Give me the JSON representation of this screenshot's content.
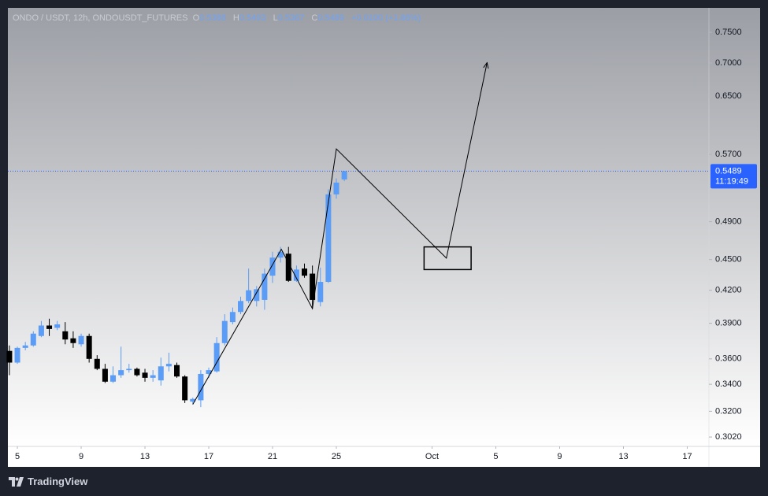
{
  "chart_data": {
    "type": "candlestick",
    "legend": {
      "symbol": "ONDO / USDT, 12h, ONDOUSDT_FUTURES",
      "open_key": "O",
      "high_key": "H",
      "low_key": "L",
      "close_key": "C",
      "change": "+0.0100 (+1.86%)"
    },
    "log_scale": true,
    "up_color": "#5b9cf6",
    "down_color": "#000000",
    "x": [
      0,
      1,
      2,
      3,
      4,
      5,
      6,
      7,
      8,
      9,
      10,
      11,
      12,
      13,
      14,
      15,
      16,
      17,
      18,
      19,
      20,
      21,
      22,
      23,
      24,
      25,
      26,
      27,
      28,
      29,
      30,
      31,
      32,
      33,
      34,
      35,
      36,
      37,
      38,
      39,
      40,
      41,
      42
    ],
    "open": [
      0.3665,
      0.357,
      0.369,
      0.371,
      0.379,
      0.388,
      0.386,
      0.383,
      0.377,
      0.372,
      0.379,
      0.36,
      0.352,
      0.342,
      0.347,
      0.351,
      0.352,
      0.349,
      0.345,
      0.343,
      0.354,
      0.355,
      0.346,
      0.327,
      0.328,
      0.348,
      0.35,
      0.373,
      0.391,
      0.4,
      0.41,
      0.41,
      0.411,
      0.434,
      0.452,
      0.456,
      0.429,
      0.441,
      0.436,
      0.409,
      0.428,
      0.521,
      0.5388
    ],
    "high": [
      0.371,
      0.37,
      0.374,
      0.383,
      0.392,
      0.394,
      0.392,
      0.391,
      0.383,
      0.381,
      0.381,
      0.363,
      0.356,
      0.354,
      0.37,
      0.356,
      0.353,
      0.352,
      0.351,
      0.361,
      0.365,
      0.357,
      0.347,
      0.33,
      0.351,
      0.353,
      0.378,
      0.398,
      0.404,
      0.414,
      0.441,
      0.424,
      0.441,
      0.458,
      0.463,
      0.463,
      0.444,
      0.446,
      0.444,
      0.442,
      0.527,
      0.54,
      0.5493
    ],
    "low": [
      0.347,
      0.356,
      0.367,
      0.37,
      0.378,
      0.379,
      0.384,
      0.372,
      0.369,
      0.37,
      0.357,
      0.351,
      0.341,
      0.341,
      0.345,
      0.349,
      0.346,
      0.342,
      0.342,
      0.339,
      0.35,
      0.345,
      0.326,
      0.325,
      0.323,
      0.345,
      0.349,
      0.371,
      0.389,
      0.398,
      0.408,
      0.405,
      0.402,
      0.427,
      0.447,
      0.428,
      0.428,
      0.432,
      0.403,
      0.405,
      0.427,
      0.516,
      0.5367
    ],
    "close": [
      0.357,
      0.369,
      0.371,
      0.381,
      0.388,
      0.385,
      0.389,
      0.376,
      0.373,
      0.379,
      0.36,
      0.352,
      0.342,
      0.347,
      0.351,
      0.352,
      0.347,
      0.345,
      0.347,
      0.354,
      0.356,
      0.346,
      0.328,
      0.329,
      0.348,
      0.351,
      0.373,
      0.392,
      0.4,
      0.41,
      0.42,
      0.421,
      0.436,
      0.452,
      0.458,
      0.429,
      0.44,
      0.434,
      0.411,
      0.428,
      0.521,
      0.535,
      0.5489
    ],
    "countdown": "11:19:49",
    "drawing_path": {
      "x": [
        23.0,
        34.1,
        38.0,
        41.0,
        54.8,
        59.9
      ],
      "values": [
        0.325,
        0.4605,
        0.403,
        0.577,
        0.4515,
        0.7006
      ]
    },
    "drawing_box": {
      "x": [
        52.0,
        57.9
      ],
      "values": [
        0.463,
        0.44
      ]
    },
    "xlim": [
      -0.19,
      87.72
    ],
    "xticks": [
      {
        "value": 1,
        "label": "5"
      },
      {
        "value": 9,
        "label": "9"
      },
      {
        "value": 17,
        "label": "13"
      },
      {
        "value": 25,
        "label": "17"
      },
      {
        "value": 33,
        "label": "21"
      },
      {
        "value": 41,
        "label": "25"
      },
      {
        "value": 53,
        "label": "Oct"
      },
      {
        "value": 61,
        "label": "5"
      },
      {
        "value": 69,
        "label": "9"
      },
      {
        "value": 77,
        "label": "13"
      },
      {
        "value": 85,
        "label": "17"
      }
    ],
    "ylim": [
      0.2957,
      0.7923
    ],
    "yticks": [
      {
        "value": 0.75,
        "label": "0.7500"
      },
      {
        "value": 0.7,
        "label": "0.7000"
      },
      {
        "value": 0.65,
        "label": "0.6500"
      },
      {
        "value": 0.57,
        "label": "0.5700"
      },
      {
        "value": 0.49,
        "label": "0.4900"
      },
      {
        "value": 0.45,
        "label": "0.4500"
      },
      {
        "value": 0.42,
        "label": "0.4200"
      },
      {
        "value": 0.39,
        "label": "0.3900"
      },
      {
        "value": 0.36,
        "label": "0.3600"
      },
      {
        "value": 0.34,
        "label": "0.3400"
      },
      {
        "value": 0.32,
        "label": "0.3200"
      },
      {
        "value": 0.302,
        "label": "0.3020"
      }
    ],
    "brand": "TradingView"
  }
}
